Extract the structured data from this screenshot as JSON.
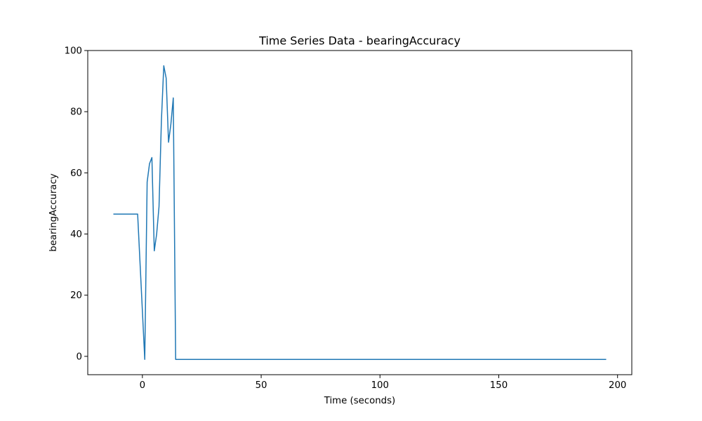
{
  "chart_data": {
    "type": "line",
    "title": "Time Series Data - bearingAccuracy",
    "xlabel": "Time (seconds)",
    "ylabel": "bearingAccuracy",
    "xlim": [
      -23,
      206
    ],
    "ylim": [
      -6,
      100
    ],
    "xticks": [
      0,
      50,
      100,
      150,
      200
    ],
    "yticks": [
      0,
      20,
      40,
      60,
      80,
      100
    ],
    "xtick_labels": [
      "0",
      "50",
      "100",
      "150",
      "200"
    ],
    "ytick_labels": [
      "0",
      "20",
      "40",
      "60",
      "80",
      "100"
    ],
    "grid": false,
    "legend": "none",
    "series": [
      {
        "color": "#1f77b4",
        "x": [
          -12,
          -2,
          1,
          2,
          3,
          4,
          5,
          6,
          7,
          8,
          9,
          10,
          11,
          12,
          13,
          14,
          195
        ],
        "y": [
          46.5,
          46.5,
          -1,
          57,
          63,
          65,
          34.5,
          40,
          49,
          77,
          95,
          91,
          70,
          76,
          84.5,
          -1,
          -1
        ]
      }
    ]
  }
}
